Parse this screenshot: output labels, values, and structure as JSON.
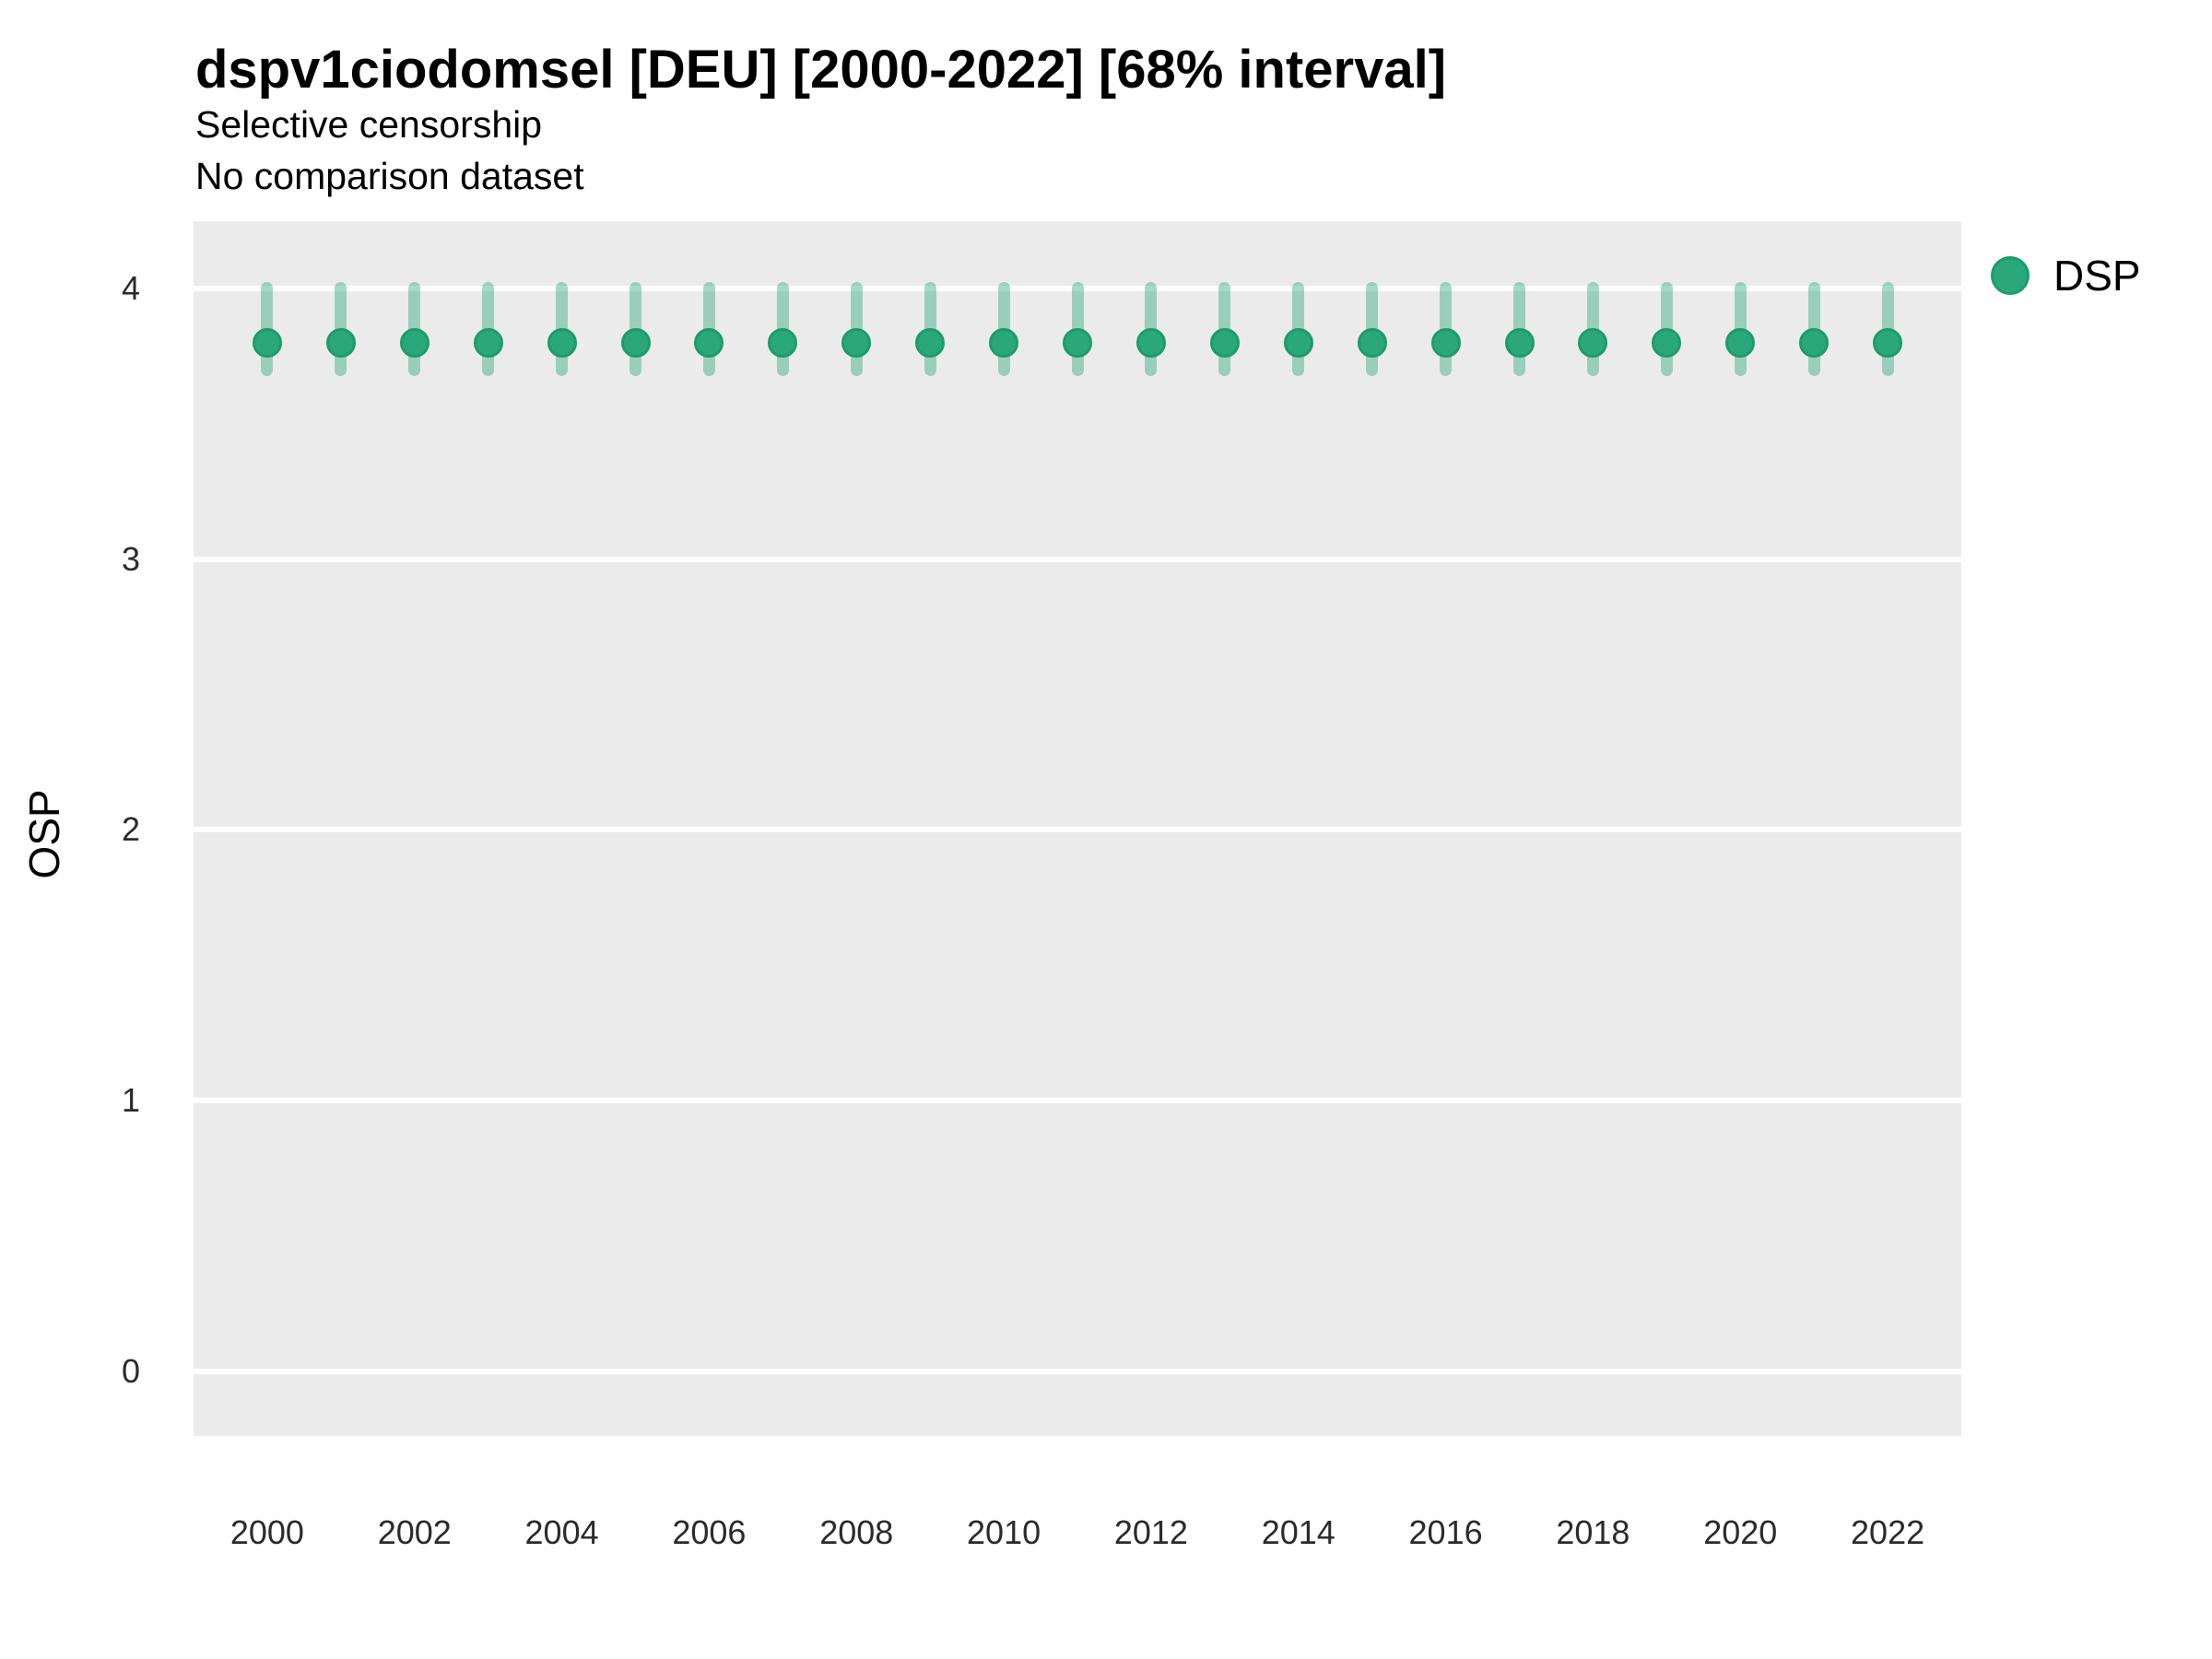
{
  "chart_data": {
    "type": "scatter",
    "variant": "pointrange",
    "title": "dspv1ciodomsel [DEU] [2000-2022] [68% interval]",
    "subtitle": "Selective censorship",
    "note": "No comparison dataset",
    "xlabel": "",
    "ylabel": "OSP",
    "xlim": [
      1999,
      2023
    ],
    "ylim": [
      -0.24,
      4.25
    ],
    "xticks": [
      2000,
      2002,
      2004,
      2006,
      2008,
      2010,
      2012,
      2014,
      2016,
      2018,
      2020,
      2022
    ],
    "yticks": [
      0,
      1,
      2,
      3,
      4
    ],
    "grid": "horizontal-major-only",
    "legend_position": "right-top",
    "colors": {
      "panel_bg": "#EBEBEB",
      "gridline": "#FFFFFF",
      "point_fill": "#2AA87C",
      "point_stroke": "#1D9C6A",
      "interval": "#2AA87C"
    },
    "interval_opacity": 0.42,
    "legend": {
      "entries": [
        {
          "label": "DSP",
          "marker": "circle",
          "color": "#2AA87C"
        }
      ]
    },
    "series": [
      {
        "name": "DSP",
        "interval_label": "68% interval",
        "points": [
          {
            "year": 2000,
            "estimate": 3.8,
            "lower": 3.7,
            "upper": 4.0
          },
          {
            "year": 2001,
            "estimate": 3.8,
            "lower": 3.7,
            "upper": 4.0
          },
          {
            "year": 2002,
            "estimate": 3.8,
            "lower": 3.7,
            "upper": 4.0
          },
          {
            "year": 2003,
            "estimate": 3.8,
            "lower": 3.7,
            "upper": 4.0
          },
          {
            "year": 2004,
            "estimate": 3.8,
            "lower": 3.7,
            "upper": 4.0
          },
          {
            "year": 2005,
            "estimate": 3.8,
            "lower": 3.7,
            "upper": 4.0
          },
          {
            "year": 2006,
            "estimate": 3.8,
            "lower": 3.7,
            "upper": 4.0
          },
          {
            "year": 2007,
            "estimate": 3.8,
            "lower": 3.7,
            "upper": 4.0
          },
          {
            "year": 2008,
            "estimate": 3.8,
            "lower": 3.7,
            "upper": 4.0
          },
          {
            "year": 2009,
            "estimate": 3.8,
            "lower": 3.7,
            "upper": 4.0
          },
          {
            "year": 2010,
            "estimate": 3.8,
            "lower": 3.7,
            "upper": 4.0
          },
          {
            "year": 2011,
            "estimate": 3.8,
            "lower": 3.7,
            "upper": 4.0
          },
          {
            "year": 2012,
            "estimate": 3.8,
            "lower": 3.7,
            "upper": 4.0
          },
          {
            "year": 2013,
            "estimate": 3.8,
            "lower": 3.7,
            "upper": 4.0
          },
          {
            "year": 2014,
            "estimate": 3.8,
            "lower": 3.7,
            "upper": 4.0
          },
          {
            "year": 2015,
            "estimate": 3.8,
            "lower": 3.7,
            "upper": 4.0
          },
          {
            "year": 2016,
            "estimate": 3.8,
            "lower": 3.7,
            "upper": 4.0
          },
          {
            "year": 2017,
            "estimate": 3.8,
            "lower": 3.7,
            "upper": 4.0
          },
          {
            "year": 2018,
            "estimate": 3.8,
            "lower": 3.7,
            "upper": 4.0
          },
          {
            "year": 2019,
            "estimate": 3.8,
            "lower": 3.7,
            "upper": 4.0
          },
          {
            "year": 2020,
            "estimate": 3.8,
            "lower": 3.7,
            "upper": 4.0
          },
          {
            "year": 2021,
            "estimate": 3.8,
            "lower": 3.7,
            "upper": 4.0
          },
          {
            "year": 2022,
            "estimate": 3.8,
            "lower": 3.7,
            "upper": 4.0
          }
        ]
      }
    ]
  }
}
